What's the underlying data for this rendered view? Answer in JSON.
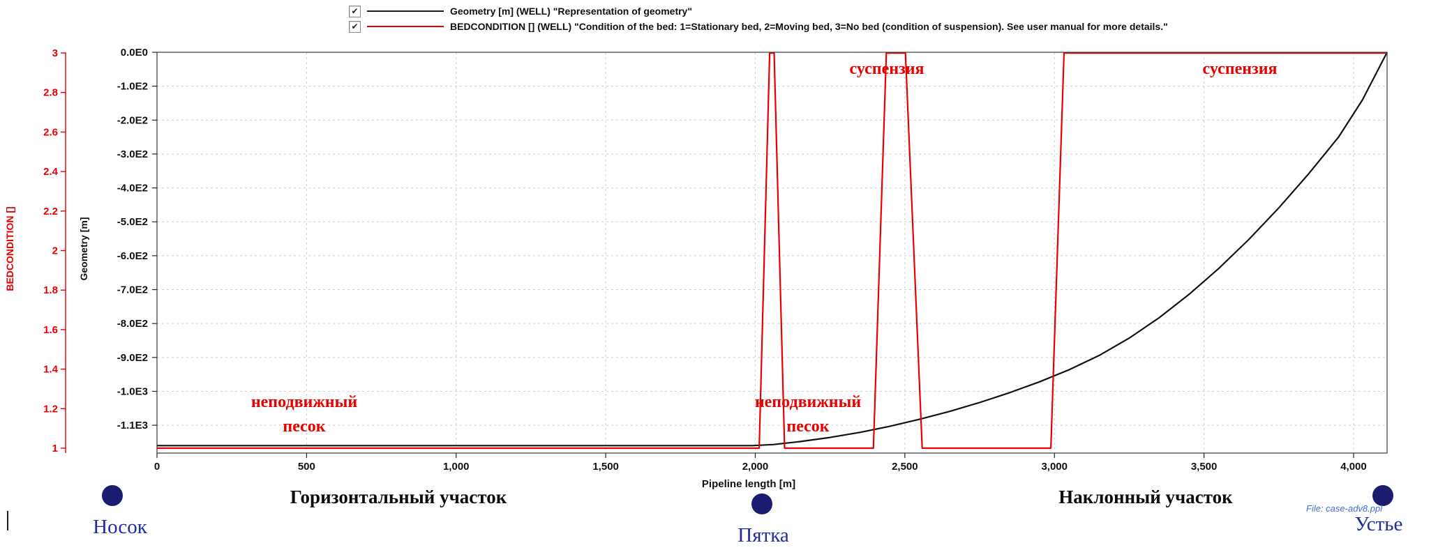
{
  "legend": {
    "checkbox_glyph": "✔",
    "items": [
      {
        "checked": true,
        "color": "#1a1a1a",
        "label": "Geometry [m] (WELL) \"Representation of geometry\""
      },
      {
        "checked": true,
        "color": "#e80000",
        "label": "BEDCONDITION [] (WELL) \"Condition of the bed: 1=Stationary bed, 2=Moving bed, 3=No bed (condition of suspension). See user manual for more details.\""
      }
    ]
  },
  "chart_data": {
    "type": "line",
    "title": "",
    "x_axis": {
      "title": "Pipeline length [m]",
      "range": [
        0,
        4112
      ],
      "tick_values": [
        0,
        500,
        1000,
        1500,
        2000,
        2500,
        3000,
        3500,
        4000
      ],
      "tick_labels": [
        "0",
        "500",
        "1,000",
        "1,500",
        "2,000",
        "2,500",
        "3,000",
        "3,500",
        "4,000"
      ]
    },
    "y_axis_bedcondition": {
      "title": "BEDCONDITION []",
      "color": "#e80000",
      "range": [
        1,
        3
      ],
      "tick_values": [
        3,
        2.8,
        2.6,
        2.4,
        2.2,
        2,
        1.8,
        1.6,
        1.4,
        1.2,
        1
      ],
      "tick_labels": [
        "3",
        "2.8",
        "2.6",
        "2.4",
        "2.2",
        "2",
        "1.8",
        "1.6",
        "1.4",
        "1.2",
        "1"
      ]
    },
    "y_axis_geometry": {
      "title": "Geometry [m]",
      "color": "#1a1a1a",
      "range": [
        0,
        -1182
      ],
      "tick_values": [
        0,
        -100,
        -200,
        -300,
        -400,
        -500,
        -600,
        -700,
        -800,
        -900,
        -1000,
        -1100
      ],
      "tick_labels": [
        "0.0E0",
        "-1.0E2",
        "-2.0E2",
        "-3.0E2",
        "-4.0E2",
        "-5.0E2",
        "-6.0E2",
        "-7.0E2",
        "-8.0E2",
        "-9.0E2",
        "-1.0E3",
        "-1.1E3"
      ]
    },
    "grid": {
      "vertical": [
        500,
        1000,
        1500,
        2000,
        2500,
        3000,
        3500,
        4000
      ],
      "horizontal_geometry": [
        -100,
        -200,
        -300,
        -400,
        -500,
        -600,
        -700,
        -800,
        -900,
        -1000,
        -1100
      ]
    },
    "series": [
      {
        "name": "Geometry [m] (WELL)",
        "axis": "geometry",
        "color": "#111111",
        "points": [
          [
            0,
            -1160
          ],
          [
            1990,
            -1160
          ],
          [
            2060,
            -1157
          ],
          [
            2150,
            -1148
          ],
          [
            2250,
            -1136
          ],
          [
            2350,
            -1121
          ],
          [
            2450,
            -1103
          ],
          [
            2550,
            -1082
          ],
          [
            2650,
            -1059
          ],
          [
            2750,
            -1033
          ],
          [
            2850,
            -1004
          ],
          [
            2950,
            -972
          ],
          [
            3050,
            -936
          ],
          [
            3150,
            -894
          ],
          [
            3250,
            -843
          ],
          [
            3350,
            -783
          ],
          [
            3450,
            -714
          ],
          [
            3550,
            -637
          ],
          [
            3650,
            -552
          ],
          [
            3750,
            -459
          ],
          [
            3850,
            -358
          ],
          [
            3950,
            -250
          ],
          [
            4030,
            -140
          ],
          [
            4112,
            0
          ]
        ]
      },
      {
        "name": "BEDCONDITION [] (WELL)",
        "axis": "bedcondition",
        "color": "#e80000",
        "points": [
          [
            0,
            1
          ],
          [
            2013,
            1
          ],
          [
            2048,
            3
          ],
          [
            2063,
            3
          ],
          [
            2098,
            1
          ],
          [
            2395,
            1
          ],
          [
            2438,
            3
          ],
          [
            2502,
            3
          ],
          [
            2558,
            1
          ],
          [
            2988,
            1
          ],
          [
            3032,
            3
          ],
          [
            4112,
            3
          ]
        ]
      }
    ]
  },
  "annotations": {
    "suspension": "суспензия",
    "stationary_sand_line1": "неподвижный",
    "stationary_sand_line2": "песок"
  },
  "footer": {
    "section_horizontal": "Горизонтальный участок",
    "section_inclined": "Наклонный участок",
    "point_toe": "Носок",
    "point_heel": "Пятка",
    "point_wellhead": "Устье",
    "file_label": "File: case-adv8.ppl"
  },
  "colors": {
    "red": "#e80000",
    "black": "#111111",
    "navy_dot": "#1b1b70",
    "blue_point_label": "#1f2da0",
    "grid": "#cfcfcf"
  }
}
